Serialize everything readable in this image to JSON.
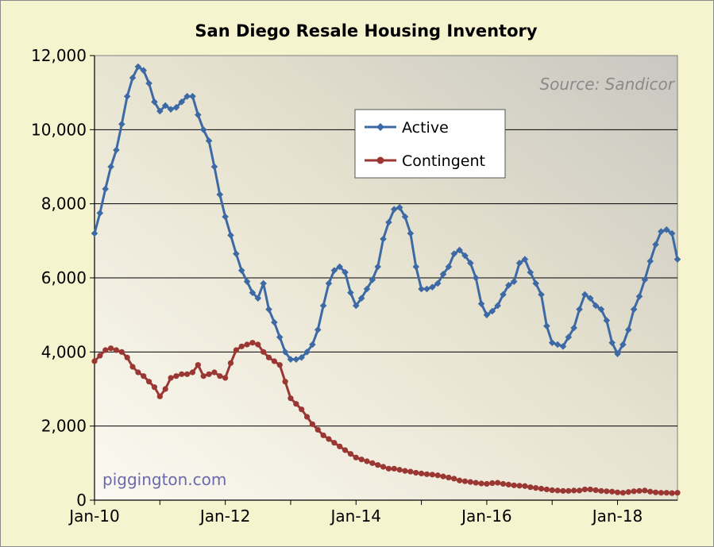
{
  "chart_data": {
    "type": "line",
    "title": "San Diego Resale Housing Inventory",
    "source_note": "Source: Sandicor",
    "watermark": "piggington.com",
    "xlabel": "",
    "ylabel": "",
    "x_start": "Jan-10",
    "x_end": "Dec-18",
    "x_ticks": [
      "Jan-10",
      "Jan-12",
      "Jan-14",
      "Jan-16",
      "Jan-18"
    ],
    "ylim": [
      0,
      12000
    ],
    "y_ticks": [
      "0",
      "2,000",
      "4,000",
      "6,000",
      "8,000",
      "10,000",
      "12,000"
    ],
    "grid": "horizontal",
    "legend_position": "upper-middle",
    "series": [
      {
        "name": "Active",
        "color": "#3d6aa5",
        "marker": "diamond",
        "values": [
          7200,
          7750,
          8400,
          9000,
          9450,
          10150,
          10900,
          11400,
          11700,
          11600,
          11250,
          10750,
          10500,
          10650,
          10550,
          10600,
          10750,
          10900,
          10900,
          10400,
          10000,
          9700,
          9000,
          8250,
          7650,
          7150,
          6650,
          6200,
          5900,
          5600,
          5450,
          5850,
          5150,
          4800,
          4400,
          4000,
          3800,
          3800,
          3850,
          4000,
          4200,
          4600,
          5250,
          5850,
          6200,
          6300,
          6150,
          5600,
          5250,
          5450,
          5700,
          5950,
          6300,
          7050,
          7500,
          7850,
          7900,
          7650,
          7200,
          6300,
          5700,
          5700,
          5750,
          5850,
          6100,
          6300,
          6650,
          6750,
          6600,
          6400,
          6000,
          5300,
          5000,
          5100,
          5250,
          5550,
          5800,
          5900,
          6400,
          6500,
          6150,
          5850,
          5550,
          4700,
          4250,
          4200,
          4150,
          4400,
          4650,
          5150,
          5550,
          5450,
          5250,
          5150,
          4850,
          4250,
          3950,
          4200,
          4600,
          5150,
          5500,
          5950,
          6450,
          6900,
          7250,
          7300,
          7200,
          6500
        ]
      },
      {
        "name": "Contingent",
        "color": "#9b3733",
        "marker": "circle",
        "values": [
          3750,
          3900,
          4050,
          4100,
          4050,
          4000,
          3850,
          3600,
          3450,
          3350,
          3200,
          3050,
          2800,
          3000,
          3300,
          3350,
          3400,
          3400,
          3450,
          3650,
          3350,
          3400,
          3450,
          3350,
          3300,
          3700,
          4050,
          4150,
          4200,
          4250,
          4200,
          4000,
          3850,
          3750,
          3650,
          3200,
          2750,
          2600,
          2450,
          2250,
          2050,
          1900,
          1750,
          1650,
          1550,
          1450,
          1350,
          1250,
          1150,
          1100,
          1050,
          1000,
          950,
          900,
          850,
          850,
          820,
          790,
          770,
          740,
          720,
          700,
          690,
          670,
          640,
          610,
          580,
          530,
          510,
          490,
          470,
          450,
          440,
          460,
          470,
          440,
          420,
          400,
          390,
          380,
          350,
          330,
          310,
          290,
          270,
          260,
          250,
          250,
          260,
          260,
          290,
          290,
          270,
          250,
          240,
          230,
          210,
          200,
          220,
          240,
          250,
          260,
          230,
          210,
          200,
          200,
          190,
          200
        ]
      }
    ]
  }
}
